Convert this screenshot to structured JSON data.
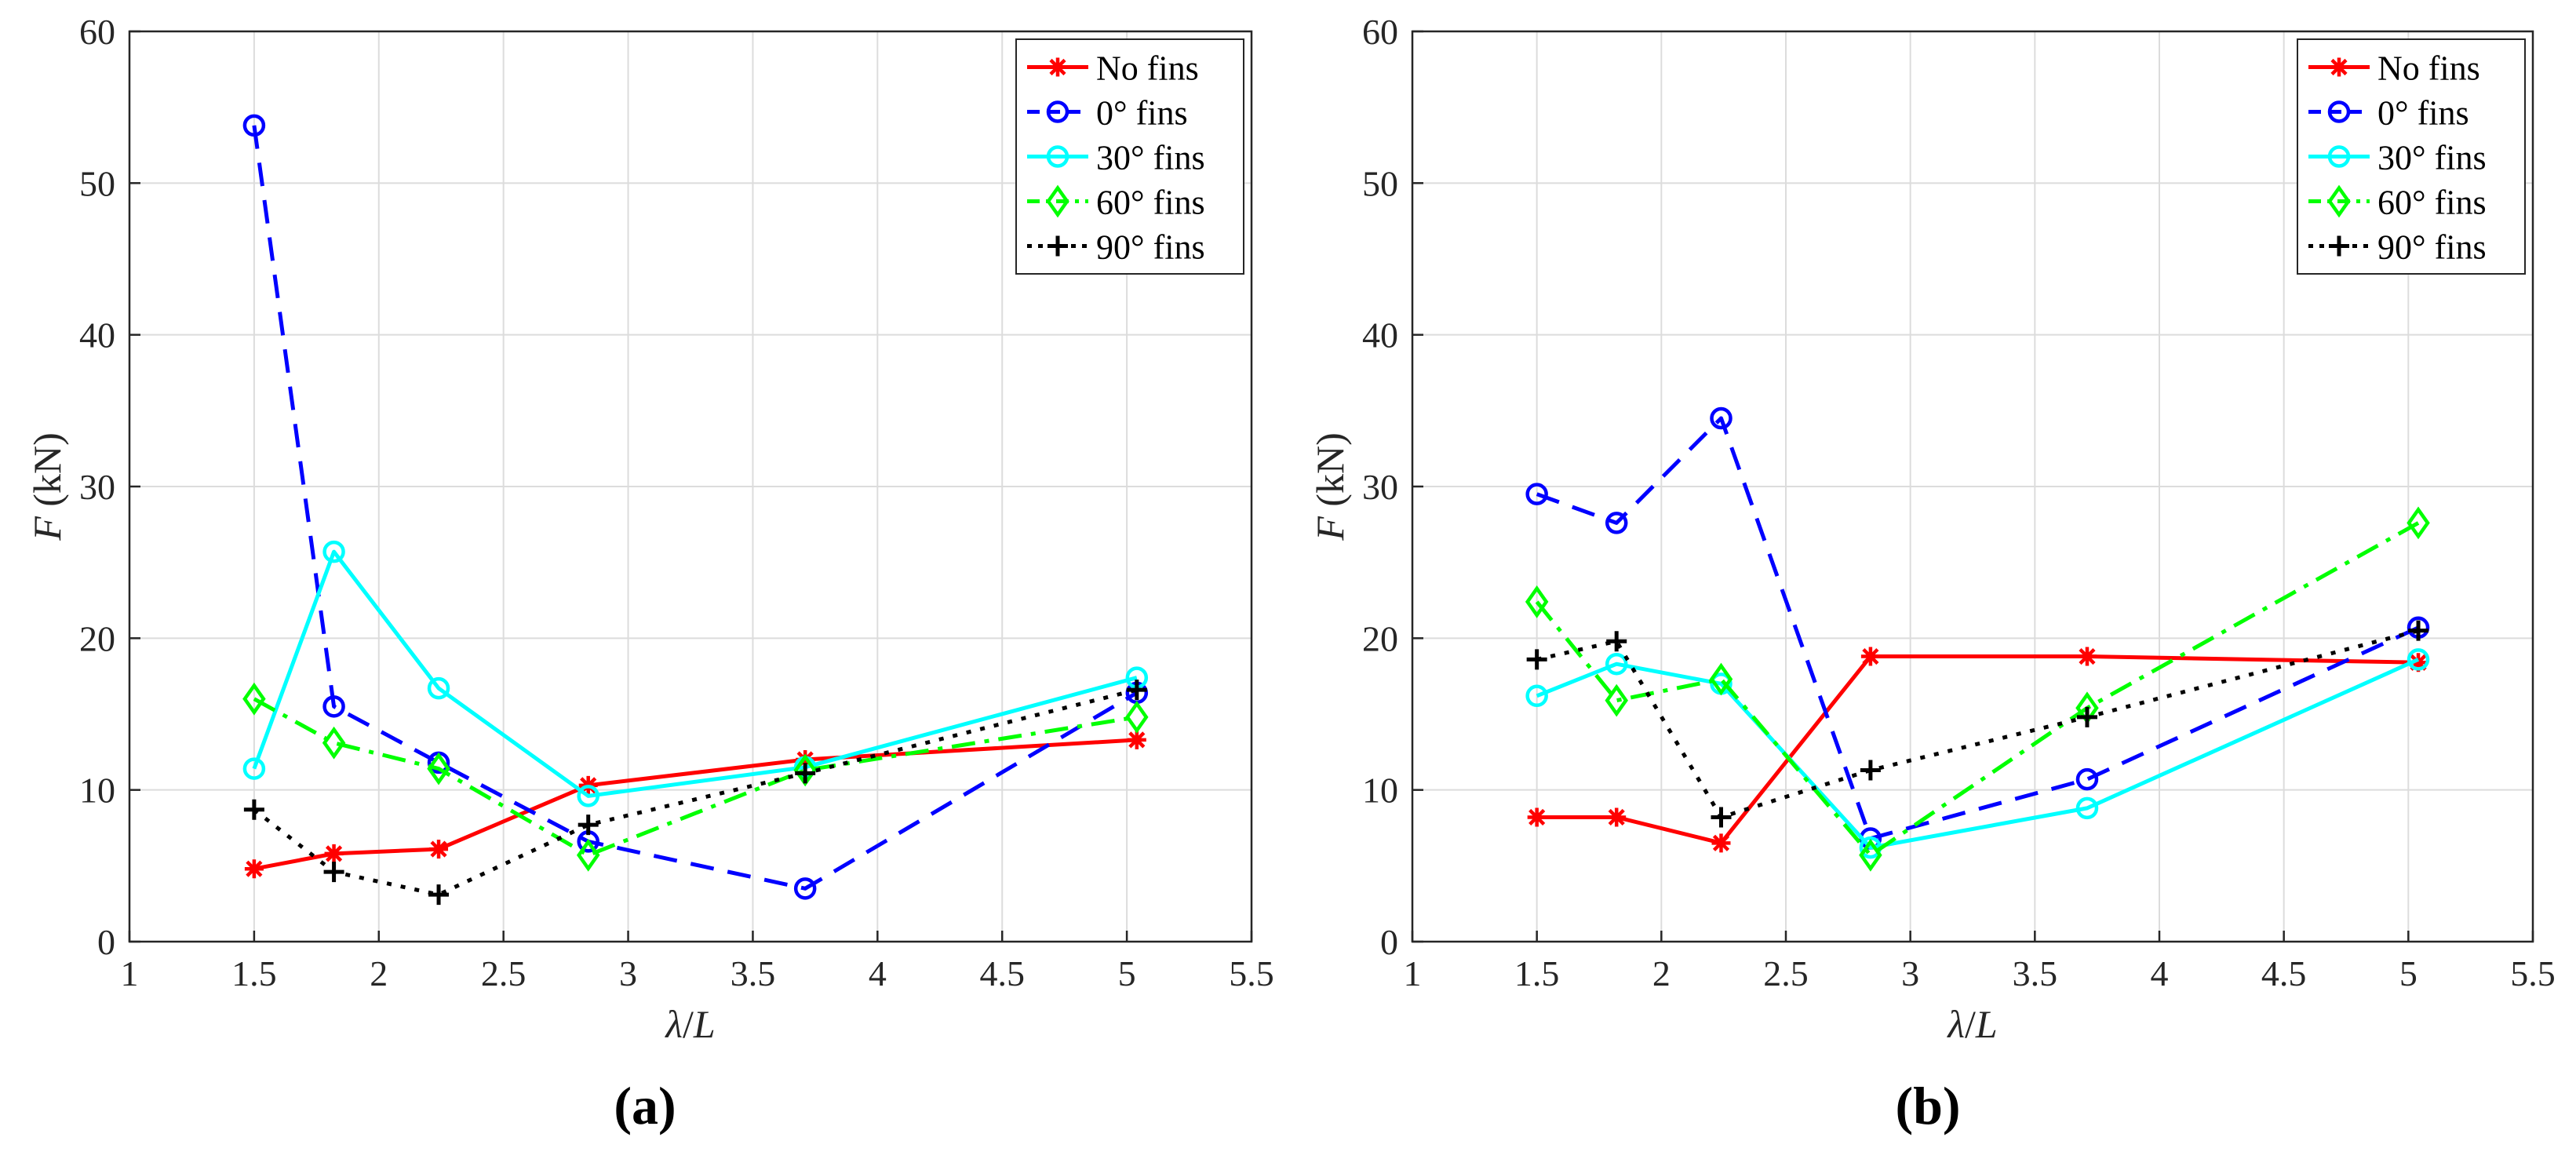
{
  "figure": {
    "panel_labels": [
      "(a)",
      "(b)"
    ]
  },
  "chart_data": [
    {
      "type": "line",
      "panel": "(a)",
      "title": "",
      "xlabel_italic": "λ",
      "xlabel_sep": "/",
      "xlabel_tail": "L",
      "ylabel_italic": "F",
      "ylabel_unit": " (kN)",
      "xlim": [
        1,
        5.5
      ],
      "ylim": [
        0,
        60
      ],
      "xticks": [
        1,
        1.5,
        2,
        2.5,
        3,
        3.5,
        4,
        4.5,
        5,
        5.5
      ],
      "xtick_labels": [
        "1",
        "1.5",
        "2",
        "2.5",
        "3",
        "3.5",
        "4",
        "4.5",
        "5",
        "5.5"
      ],
      "yticks": [
        0,
        10,
        20,
        30,
        40,
        50,
        60
      ],
      "ytick_labels": [
        "0",
        "10",
        "20",
        "30",
        "40",
        "50",
        "60"
      ],
      "grid": true,
      "legend_position": "top-right",
      "x": [
        1.5,
        1.82,
        2.24,
        2.84,
        3.71,
        5.04
      ],
      "series": [
        {
          "name": "No fins",
          "color": "#ff0000",
          "dash": "solid",
          "marker": "asterisk",
          "values": [
            4.8,
            5.8,
            6.1,
            10.3,
            12.0,
            13.3
          ]
        },
        {
          "name": "0° fins",
          "color": "#0000ff",
          "dash": "dashed",
          "marker": "circle",
          "values": [
            53.8,
            15.5,
            11.8,
            6.6,
            3.5,
            16.4
          ]
        },
        {
          "name": "30° fins",
          "color": "#00ffff",
          "dash": "solid",
          "marker": "circle",
          "values": [
            11.4,
            25.7,
            16.7,
            9.6,
            11.5,
            17.4
          ]
        },
        {
          "name": "60° fins",
          "color": "#00ff00",
          "dash": "dashdot",
          "marker": "diamond",
          "values": [
            16.0,
            13.1,
            11.4,
            5.7,
            11.3,
            14.8
          ]
        },
        {
          "name": "90° fins",
          "color": "#000000",
          "dash": "dotted",
          "marker": "plus",
          "values": [
            8.7,
            4.6,
            3.1,
            7.7,
            11.1,
            16.6
          ]
        }
      ]
    },
    {
      "type": "line",
      "panel": "(b)",
      "title": "",
      "xlabel_italic": "λ",
      "xlabel_sep": "/",
      "xlabel_tail": "L",
      "ylabel_italic": "F",
      "ylabel_unit": " (kN)",
      "xlim": [
        1,
        5.5
      ],
      "ylim": [
        0,
        60
      ],
      "xticks": [
        1,
        1.5,
        2,
        2.5,
        3,
        3.5,
        4,
        4.5,
        5,
        5.5
      ],
      "xtick_labels": [
        "1",
        "1.5",
        "2",
        "2.5",
        "3",
        "3.5",
        "4",
        "4.5",
        "5",
        "5.5"
      ],
      "yticks": [
        0,
        10,
        20,
        30,
        40,
        50,
        60
      ],
      "ytick_labels": [
        "0",
        "10",
        "20",
        "30",
        "40",
        "50",
        "60"
      ],
      "grid": true,
      "legend_position": "top-right",
      "x": [
        1.5,
        1.82,
        2.24,
        2.84,
        3.71,
        5.04
      ],
      "series": [
        {
          "name": "No fins",
          "color": "#ff0000",
          "dash": "solid",
          "marker": "asterisk",
          "values": [
            8.2,
            8.2,
            6.5,
            18.8,
            18.8,
            18.4
          ]
        },
        {
          "name": "0° fins",
          "color": "#0000ff",
          "dash": "dashed",
          "marker": "circle",
          "values": [
            29.5,
            27.6,
            34.5,
            6.8,
            10.7,
            20.7
          ]
        },
        {
          "name": "30° fins",
          "color": "#00ffff",
          "dash": "solid",
          "marker": "circle",
          "values": [
            16.2,
            18.3,
            17.0,
            6.2,
            8.8,
            18.6
          ]
        },
        {
          "name": "60° fins",
          "color": "#00ff00",
          "dash": "dashdot",
          "marker": "diamond",
          "values": [
            22.4,
            15.9,
            17.3,
            5.7,
            15.4,
            27.6
          ]
        },
        {
          "name": "90° fins",
          "color": "#000000",
          "dash": "dotted",
          "marker": "plus",
          "values": [
            18.6,
            19.8,
            8.2,
            11.3,
            14.8,
            20.5
          ]
        }
      ]
    }
  ]
}
